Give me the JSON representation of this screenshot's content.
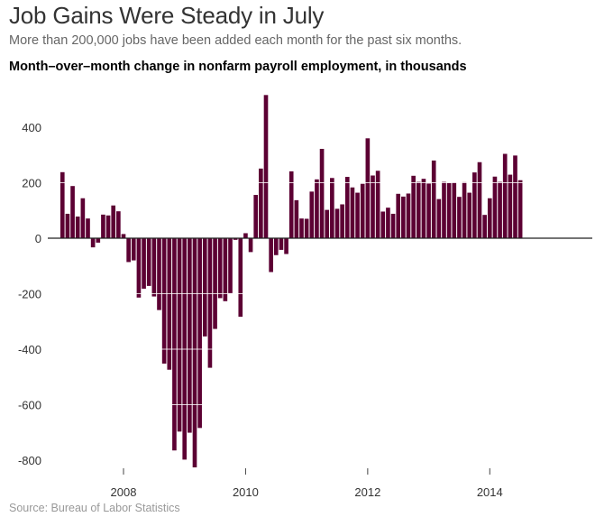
{
  "title": "Job Gains Were Steady in July",
  "subtitle": "More than 200,000 jobs have been added each month for the past six months.",
  "source": "Source: Bureau of Labor Statistics",
  "chart_data": {
    "type": "bar",
    "title": "Month–over–month change in nonfarm payroll employment, in thousands",
    "xlabel": "",
    "ylabel": "",
    "start_month": "2007-01",
    "end_month": "2014-07",
    "ylim": [
      -830,
      520
    ],
    "yticks": [
      400,
      200,
      0,
      -200,
      -400,
      -600,
      -800
    ],
    "xticks": [
      "2008",
      "2010",
      "2012",
      "2014"
    ],
    "gridlines": [
      200,
      -200,
      -400,
      -600
    ],
    "bar_color": "#5c0033",
    "values": [
      238,
      88,
      188,
      78,
      144,
      71,
      -33,
      -16,
      85,
      82,
      118,
      97,
      15,
      -86,
      -80,
      -214,
      -182,
      -172,
      -210,
      -259,
      -452,
      -474,
      -765,
      -697,
      -798,
      -701,
      -826,
      -684,
      -354,
      -467,
      -327,
      -216,
      -227,
      -198,
      -6,
      -283,
      18,
      -50,
      156,
      251,
      516,
      -122,
      -61,
      -42,
      -57,
      241,
      137,
      71,
      70,
      168,
      212,
      322,
      102,
      217,
      106,
      122,
      221,
      183,
      164,
      196,
      360,
      226,
      243,
      96,
      110,
      88,
      160,
      150,
      161,
      225,
      203,
      214,
      197,
      280,
      141,
      203,
      199,
      201,
      149,
      202,
      164,
      237,
      274,
      84,
      144,
      222,
      203,
      304,
      229,
      298,
      209
    ]
  }
}
